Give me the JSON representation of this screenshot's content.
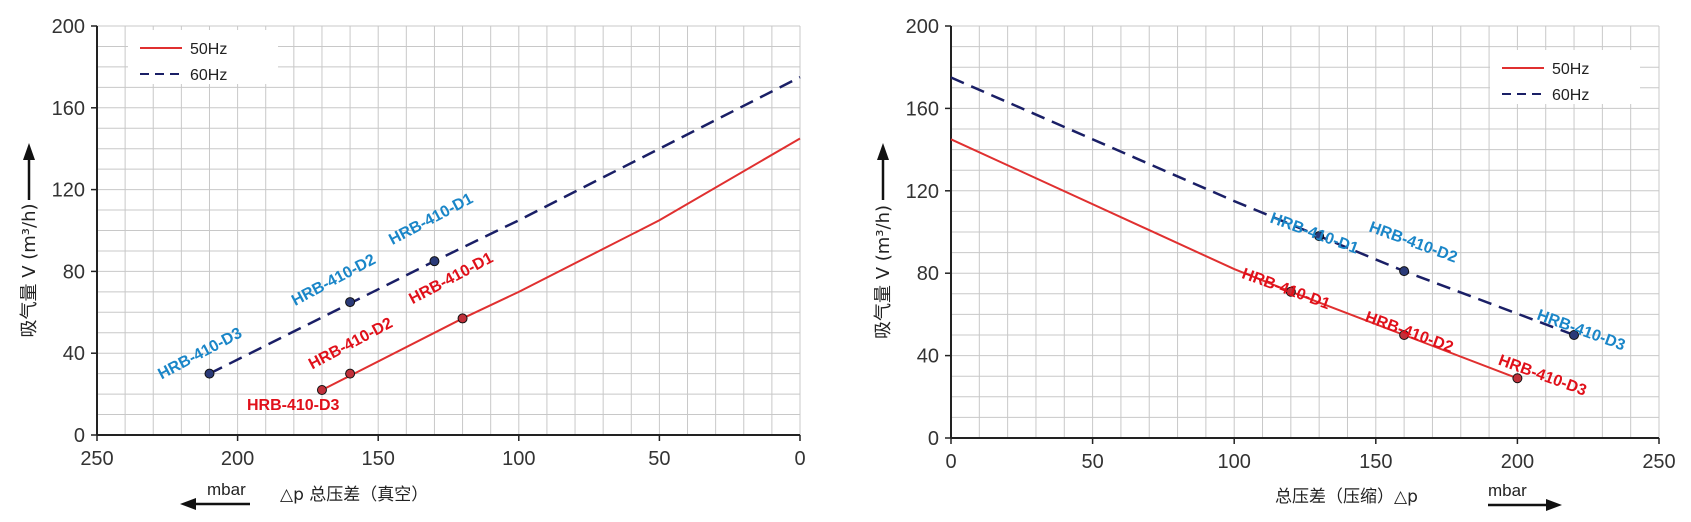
{
  "chart_data": [
    {
      "type": "line",
      "xlabel": "△p  总压差（真空）",
      "ylabel": "吸气量 V (m³/h)",
      "x_unit": "mbar",
      "xlim": [
        250,
        0
      ],
      "ylim": [
        0,
        200
      ],
      "x_ticks": [
        250,
        200,
        150,
        100,
        50,
        0
      ],
      "y_ticks": [
        0,
        40,
        80,
        120,
        160,
        200
      ],
      "grid": true,
      "legend_position": "top-left",
      "series": [
        {
          "name": "50Hz",
          "color": "#e03030",
          "dash": "solid",
          "x": [
            170,
            120,
            100,
            50,
            0
          ],
          "y": [
            22,
            57,
            70,
            105,
            145
          ],
          "points": [
            {
              "label": "HRB-410-D1",
              "x": 120,
              "y": 57
            },
            {
              "label": "HRB-410-D2",
              "x": 160,
              "y": 30
            },
            {
              "label": "HRB-410-D3",
              "x": 170,
              "y": 22
            }
          ]
        },
        {
          "name": "60Hz",
          "color": "#1a1f66",
          "dash": "dashed",
          "x": [
            210,
            130,
            100,
            0
          ],
          "y": [
            30,
            85,
            105,
            175
          ],
          "points": [
            {
              "label": "HRB-410-D1",
              "x": 130,
              "y": 85
            },
            {
              "label": "HRB-410-D2",
              "x": 160,
              "y": 65
            },
            {
              "label": "HRB-410-D3",
              "x": 210,
              "y": 30
            }
          ]
        }
      ]
    },
    {
      "type": "line",
      "xlabel": "总压差（压缩）△p",
      "ylabel": "吸气量 V (m³/h)",
      "x_unit": "mbar",
      "xlim": [
        0,
        250
      ],
      "ylim": [
        0,
        200
      ],
      "x_ticks": [
        0,
        50,
        100,
        150,
        200,
        250
      ],
      "y_ticks": [
        0,
        40,
        80,
        120,
        160,
        200
      ],
      "grid": true,
      "legend_position": "top-right",
      "series": [
        {
          "name": "50Hz",
          "color": "#e03030",
          "dash": "solid",
          "x": [
            0,
            100,
            120,
            160,
            200
          ],
          "y": [
            145,
            82,
            71,
            50,
            29
          ],
          "points": [
            {
              "label": "HRB-410-D1",
              "x": 120,
              "y": 71
            },
            {
              "label": "HRB-410-D2",
              "x": 160,
              "y": 50
            },
            {
              "label": "HRB-410-D3",
              "x": 200,
              "y": 29
            }
          ]
        },
        {
          "name": "60Hz",
          "color": "#1a1f66",
          "dash": "dashed",
          "x": [
            0,
            100,
            130,
            160,
            220
          ],
          "y": [
            175,
            115,
            98,
            81,
            50
          ],
          "points": [
            {
              "label": "HRB-410-D1",
              "x": 130,
              "y": 98
            },
            {
              "label": "HRB-410-D2",
              "x": 160,
              "y": 81
            },
            {
              "label": "HRB-410-D3",
              "x": 220,
              "y": 50
            }
          ]
        }
      ]
    }
  ]
}
